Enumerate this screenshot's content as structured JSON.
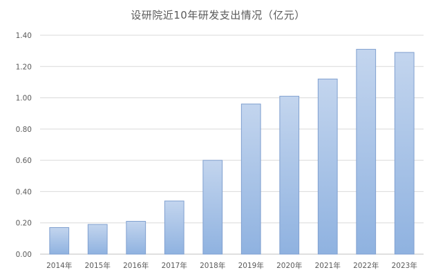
{
  "chart_data": {
    "type": "bar",
    "title": "设研院近10年研发支出情况（亿元）",
    "categories": [
      "2014年",
      "2015年",
      "2016年",
      "2017年",
      "2018年",
      "2019年",
      "2020年",
      "2021年",
      "2022年",
      "2023年"
    ],
    "values": [
      0.17,
      0.19,
      0.21,
      0.34,
      0.6,
      0.96,
      1.01,
      1.12,
      1.31,
      1.29
    ],
    "yticks": [
      "0.00",
      "0.20",
      "0.40",
      "0.60",
      "0.80",
      "1.00",
      "1.20",
      "1.40"
    ],
    "ylim": [
      0,
      1.4
    ],
    "grid": true,
    "xlabel": "",
    "ylabel": "",
    "colors": {
      "bar_top": "#c3d5ee",
      "bar_bottom": "#8fb2e0",
      "bar_border": "#7f9fcf"
    }
  }
}
